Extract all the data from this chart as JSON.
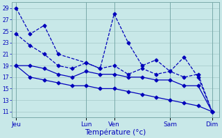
{
  "background_color": "#c8e8e8",
  "grid_color": "#9bbfbf",
  "line_color": "#0000bb",
  "xlabel": "Température (°c)",
  "ylim": [
    10,
    30
  ],
  "yticks": [
    11,
    13,
    15,
    17,
    19,
    21,
    23,
    25,
    27,
    29
  ],
  "x_day_labels": [
    "Jeu",
    "Lun",
    "Ven",
    "Sam",
    "Dim"
  ],
  "x_day_positions": [
    0,
    5,
    7,
    11,
    14
  ],
  "xlim": [
    -0.3,
    14.5
  ],
  "line1_x": [
    0,
    1,
    2,
    3,
    5,
    6,
    7,
    8,
    9,
    10,
    11,
    12,
    13,
    14
  ],
  "line1_y": [
    29,
    24.5,
    26,
    21,
    19.5,
    18.5,
    28,
    23,
    19,
    20,
    18,
    20.5,
    17,
    11
  ],
  "line2_x": [
    0,
    1,
    2,
    3,
    4,
    5,
    6,
    7,
    8,
    9,
    10,
    11,
    12,
    13,
    14
  ],
  "line2_y": [
    24.5,
    22.5,
    21,
    19,
    18.5,
    19.5,
    18.5,
    19,
    17.5,
    18.5,
    17.5,
    18,
    17,
    17.5,
    11
  ],
  "line3_x": [
    0,
    1,
    2,
    3,
    4,
    5,
    6,
    7,
    8,
    9,
    10,
    11,
    12,
    13,
    14
  ],
  "line3_y": [
    19,
    19,
    18.5,
    17.5,
    17,
    18,
    17.5,
    17.5,
    17,
    17,
    16.5,
    16.5,
    15.5,
    15.5,
    11
  ],
  "line4_x": [
    0,
    1,
    2,
    3,
    4,
    5,
    6,
    7,
    8,
    9,
    10,
    11,
    12,
    13,
    14
  ],
  "line4_y": [
    19,
    17,
    16.5,
    16,
    15.5,
    15.5,
    15,
    15,
    14.5,
    14,
    13.5,
    13,
    12.5,
    12,
    11
  ]
}
